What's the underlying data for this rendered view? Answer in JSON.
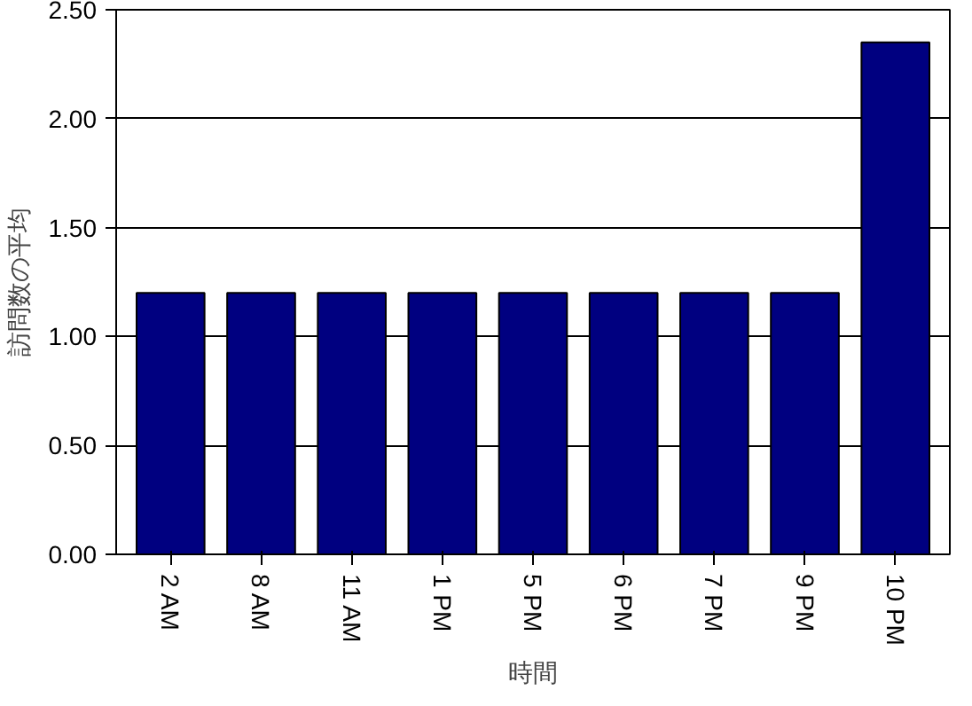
{
  "chart_data": {
    "type": "bar",
    "xlabel": "時間",
    "ylabel": "訪問数の平均",
    "categories": [
      "2 AM",
      "8 AM",
      "11 AM",
      "1 PM",
      "5 PM",
      "6 PM",
      "7 PM",
      "9 PM",
      "10 PM"
    ],
    "values": [
      1.2,
      1.2,
      1.2,
      1.2,
      1.2,
      1.2,
      1.2,
      1.2,
      2.35
    ],
    "color": "#000080",
    "ylim": [
      0,
      2.5
    ],
    "yticks": [
      {
        "value": 0,
        "label": "0.00"
      },
      {
        "value": 0.5,
        "label": "0.50"
      },
      {
        "value": 1,
        "label": "1.00"
      },
      {
        "value": 1.5,
        "label": "1.50"
      },
      {
        "value": 2,
        "label": "2.00"
      },
      {
        "value": 2.5,
        "label": "2.50"
      }
    ],
    "grid": "y",
    "legend": false
  }
}
